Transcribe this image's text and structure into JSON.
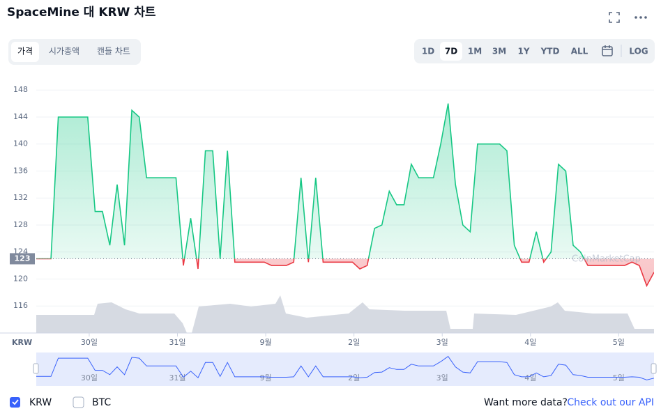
{
  "chart_data": {
    "type": "line",
    "title": "SpaceMine 대 KRW 차트",
    "tabs": [
      "가격",
      "시가총액",
      "캔들 차트"
    ],
    "ranges": [
      "1D",
      "7D",
      "1M",
      "3M",
      "1Y",
      "YTD",
      "ALL",
      "LOG"
    ],
    "active_range": "7D",
    "axis_label": "KRW",
    "current_value": 123,
    "watermark": "CoinMarketCap",
    "series": [
      {
        "name": "KRW",
        "color_up": "#16c784",
        "color_down": "#ea3943",
        "values": [
          123,
          123,
          123,
          144,
          144,
          144,
          144,
          144,
          130,
          130,
          125,
          134,
          125,
          145,
          144,
          135,
          135,
          135,
          135,
          135,
          122,
          129,
          121.5,
          139,
          139,
          123,
          139,
          122.5,
          122.5,
          122.5,
          122.5,
          122.5,
          122,
          122,
          122,
          122.5,
          135,
          122.5,
          135,
          122.5,
          122.5,
          122.5,
          122.5,
          122.5,
          121.5,
          122,
          127.5,
          128,
          133,
          131,
          131,
          137,
          135,
          135,
          135,
          140,
          146,
          134,
          128,
          127,
          140,
          140,
          140,
          140,
          139,
          125,
          122.5,
          122.5,
          127,
          122.5,
          124,
          137,
          136,
          125,
          124,
          122,
          122,
          122,
          122,
          122,
          122,
          122.5,
          122,
          119,
          121
        ]
      }
    ],
    "legend": [
      "KRW",
      "BTC"
    ],
    "xlim": [
      0,
      84
    ],
    "xticks": [
      {
        "value": 7.2,
        "label": "30일"
      },
      {
        "value": 19.2,
        "label": "31일"
      },
      {
        "value": 31.2,
        "label": "9월"
      },
      {
        "value": 43.2,
        "label": "2일"
      },
      {
        "value": 55.2,
        "label": "3일"
      },
      {
        "value": 67.2,
        "label": "4일"
      },
      {
        "value": 79.2,
        "label": "5일"
      }
    ],
    "ylim": [
      112,
      150.5
    ],
    "yticks": [
      116,
      120,
      124,
      128,
      132,
      136,
      140,
      144,
      148
    ],
    "grid": true,
    "footer": {
      "text": "Want more data?",
      "link": "Check out our API"
    }
  }
}
